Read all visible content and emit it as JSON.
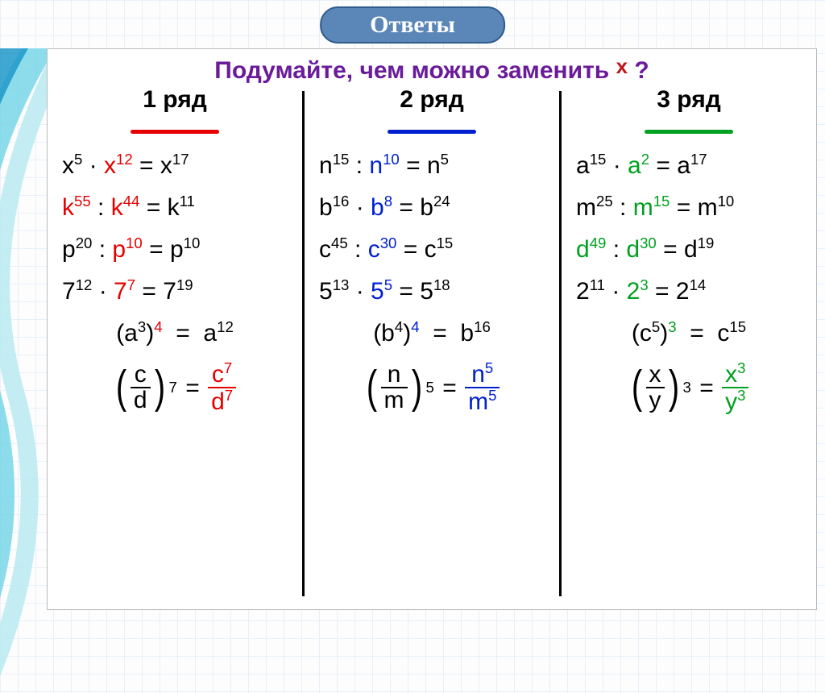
{
  "badge": "Ответы",
  "prompt_pre": "Подумайте, чем можно заменить ",
  "prompt_x": "х",
  "prompt_q": " ?",
  "colors": {
    "badge_bg": "#5a86b8",
    "badge_border": "#2f5b8e",
    "prompt": "#6a1b9a",
    "col1": "#e60000",
    "col2": "#0020d0",
    "col3": "#00a020",
    "black": "#000000"
  },
  "columns": [
    {
      "title": "1 ряд",
      "underline_color": "#e60000",
      "accent": "c1",
      "rows": [
        {
          "a": "x",
          "ae": "5",
          "op": "·",
          "b": "x",
          "be": "12",
          "r": "x",
          "re": "17"
        },
        {
          "a": "k",
          "ae": "55",
          "op": ":",
          "b": "k",
          "be": "44",
          "r": "k",
          "re": "11",
          "lead_accent": true
        },
        {
          "a": "p",
          "ae": "20",
          "op": ":",
          "b": "p",
          "be": "10",
          "r": "p",
          "re": "10"
        },
        {
          "a": "7",
          "ae": "12",
          "op": "·",
          "b": "7",
          "be": "7",
          "r": "7",
          "re": "19"
        },
        {
          "paren_base": "a",
          "paren_inner": "3",
          "paren_outer": "4",
          "r": "a",
          "re": "12"
        },
        {
          "frac_n": "c",
          "frac_d": "d",
          "frac_exp": "7",
          "res_n": "c",
          "res_ne": "7",
          "res_d": "d",
          "res_de": "7"
        }
      ]
    },
    {
      "title": "2  ряд",
      "underline_color": "#0020d0",
      "accent": "c2",
      "rows": [
        {
          "a": "n",
          "ae": "15",
          "op": ":",
          "b": "n",
          "be": "10",
          "r": "n",
          "re": "5"
        },
        {
          "a": "b",
          "ae": "16",
          "op": "·",
          "b": "b",
          "be": "8",
          "r": "b",
          "re": "24"
        },
        {
          "a": "c",
          "ae": "45",
          "op": ":",
          "b": "c",
          "be": "30",
          "r": "c",
          "re": "15"
        },
        {
          "a": "5",
          "ae": "13",
          "op": "·",
          "b": "5",
          "be": "5",
          "r": "5",
          "re": "18"
        },
        {
          "paren_base": "b",
          "paren_inner": "4",
          "paren_outer": "4",
          "r": "b",
          "re": "16"
        },
        {
          "frac_n": "n",
          "frac_d": "m",
          "frac_exp": "5",
          "res_n": "n",
          "res_ne": "5",
          "res_d": "m",
          "res_de": "5"
        }
      ]
    },
    {
      "title": "3 ряд",
      "underline_color": "#00a020",
      "accent": "c3",
      "rows": [
        {
          "a": "a",
          "ae": "15",
          "op": "·",
          "b": "a",
          "be": "2",
          "r": "a",
          "re": "17"
        },
        {
          "a": "m",
          "ae": "25",
          "op": ":",
          "b": "m",
          "be": "15",
          "r": "m",
          "re": "10"
        },
        {
          "a": "d",
          "ae": "49",
          "op": ":",
          "b": "d",
          "be": "30",
          "r": "d",
          "re": "19",
          "lead_accent": true
        },
        {
          "a": "2",
          "ae": "11",
          "op": "·",
          "b": "2",
          "be": "3",
          "r": "2",
          "re": "14"
        },
        {
          "paren_base": "c",
          "paren_inner": "5",
          "paren_outer": "3",
          "r": "c",
          "re": "15"
        },
        {
          "frac_n": "x",
          "frac_d": "y",
          "frac_exp": "3",
          "res_n": "x",
          "res_ne": "3",
          "res_d": "y",
          "res_de": "3"
        }
      ]
    }
  ]
}
